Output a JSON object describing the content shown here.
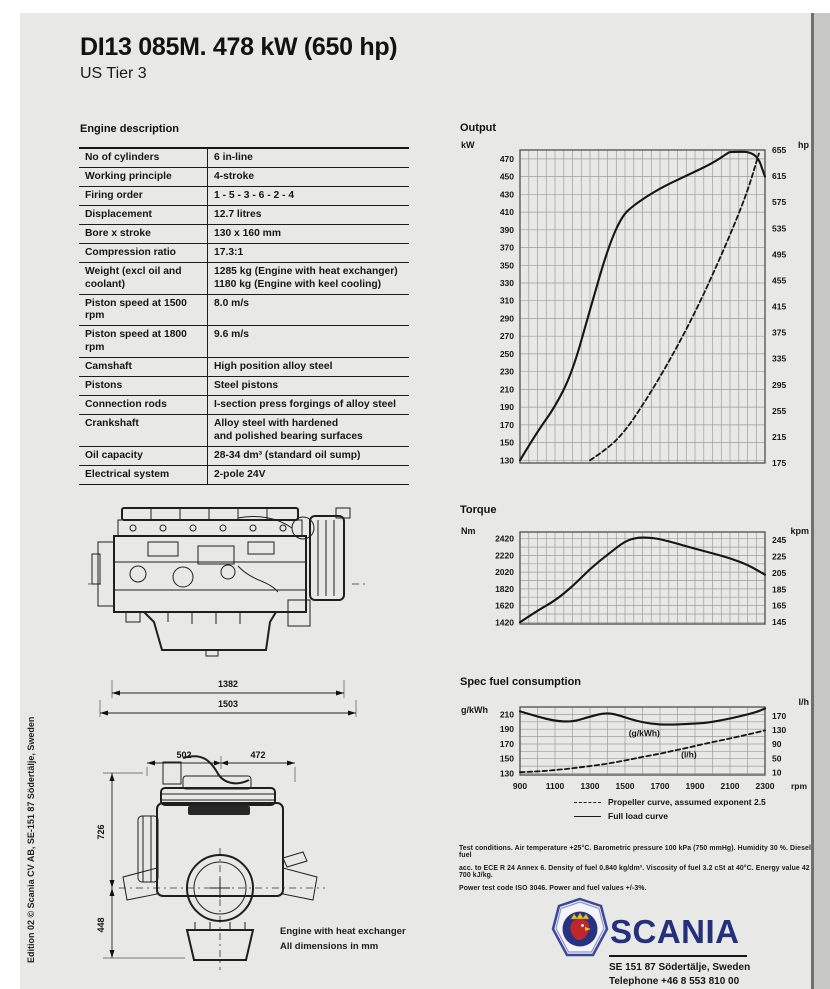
{
  "page": {
    "title": "DI13 085M. 478 kW (650 hp)",
    "subtitle": "US Tier 3",
    "edition_sidebar": "Edition 02 © Scania CV AB, SE-151 87  Södertälje, Sweden"
  },
  "engine_table": {
    "heading": "Engine description",
    "rows": [
      {
        "label": "No of cylinders",
        "value": "6 in-line"
      },
      {
        "label": "Working principle",
        "value": "4-stroke"
      },
      {
        "label": "Firing order",
        "value": "1 - 5 - 3 - 6 - 2 - 4"
      },
      {
        "label": "Displacement",
        "value": "12.7 litres"
      },
      {
        "label": "Bore x stroke",
        "value": "130 x 160 mm"
      },
      {
        "label": "Compression ratio",
        "value": "17.3:1"
      },
      {
        "label": "Weight (excl oil and coolant)",
        "value": "1285 kg (Engine with heat exchanger)\n1180 kg (Engine with keel cooling)"
      },
      {
        "label": "Piston speed at 1500 rpm",
        "value": "8.0 m/s"
      },
      {
        "label": "Piston speed at 1800 rpm",
        "value": "9.6 m/s"
      },
      {
        "label": "Camshaft",
        "value": "High position alloy steel"
      },
      {
        "label": "Pistons",
        "value": "Steel pistons"
      },
      {
        "label": "Connection rods",
        "value": "I-section press forgings of alloy steel"
      },
      {
        "label": "Crankshaft",
        "value": "Alloy steel with hardened\nand polished bearing surfaces"
      },
      {
        "label": "Oil capacity",
        "value": "28-34 dm³  (standard oil sump)"
      },
      {
        "label": "Electrical system",
        "value": "2-pole 24V"
      }
    ]
  },
  "drawings": {
    "side": {
      "dim_length_inner": "1382",
      "dim_length_outer": "1503"
    },
    "front": {
      "dim_top_left": "502",
      "dim_top_right": "472",
      "dim_height_upper": "726",
      "dim_height_lower": "448"
    },
    "caption_line1": "Engine with heat exchanger",
    "caption_line2": "All dimensions in mm"
  },
  "chart_data": [
    {
      "id": "output",
      "type": "line",
      "title": "Output",
      "left_unit": "kW",
      "right_unit": "hp",
      "xlim": [
        900,
        2300
      ],
      "x_grid_step": 50,
      "show_x_labels": false,
      "ylim": [
        127,
        480
      ],
      "y_grid_step": 20,
      "left_ticks": [
        470,
        450,
        430,
        410,
        390,
        370,
        350,
        330,
        310,
        290,
        270,
        250,
        230,
        210,
        190,
        170,
        150,
        130
      ],
      "ylim_right": [
        175,
        655
      ],
      "right_ticks": [
        655,
        615,
        575,
        535,
        495,
        455,
        415,
        375,
        335,
        295,
        255,
        215,
        175
      ],
      "series": [
        {
          "name": "Full load curve",
          "style": "solid",
          "axis": "left",
          "points": [
            [
              900,
              130
            ],
            [
              1000,
              163
            ],
            [
              1100,
              190
            ],
            [
              1200,
              230
            ],
            [
              1300,
              300
            ],
            [
              1400,
              368
            ],
            [
              1480,
              405
            ],
            [
              1550,
              418
            ],
            [
              1700,
              437
            ],
            [
              1850,
              451
            ],
            [
              2000,
              465
            ],
            [
              2090,
              477
            ],
            [
              2100,
              478
            ],
            [
              2250,
              478
            ],
            [
              2300,
              450
            ]
          ]
        },
        {
          "name": "Propeller curve, assumed exponent 2.5",
          "style": "dashed",
          "axis": "left",
          "points": [
            [
              1300,
              130
            ],
            [
              1400,
              143
            ],
            [
              1500,
              163
            ],
            [
              1600,
              192
            ],
            [
              1700,
              224
            ],
            [
              1800,
              259
            ],
            [
              1900,
              297
            ],
            [
              2000,
              339
            ],
            [
              2100,
              384
            ],
            [
              2200,
              433
            ],
            [
              2265,
              476
            ]
          ]
        }
      ]
    },
    {
      "id": "torque",
      "type": "line",
      "title": "Torque",
      "left_unit": "Nm",
      "right_unit": "kpm",
      "xlim": [
        900,
        2300
      ],
      "x_grid_step": 50,
      "show_x_labels": false,
      "ylim": [
        1400,
        2500
      ],
      "y_grid_step": 100,
      "left_ticks": [
        2420,
        2220,
        2020,
        1820,
        1620,
        1420
      ],
      "ylim_right": [
        142.7,
        254.8
      ],
      "right_ticks": [
        245,
        225,
        205,
        185,
        165,
        145
      ],
      "series": [
        {
          "name": "Full load curve",
          "style": "solid",
          "axis": "left",
          "points": [
            [
              900,
              1420
            ],
            [
              1000,
              1560
            ],
            [
              1100,
              1680
            ],
            [
              1200,
              1850
            ],
            [
              1300,
              2060
            ],
            [
              1400,
              2230
            ],
            [
              1500,
              2390
            ],
            [
              1570,
              2435
            ],
            [
              1650,
              2430
            ],
            [
              1700,
              2415
            ],
            [
              1800,
              2360
            ],
            [
              1900,
              2300
            ],
            [
              2000,
              2245
            ],
            [
              2100,
              2185
            ],
            [
              2200,
              2110
            ],
            [
              2300,
              1990
            ]
          ]
        }
      ]
    },
    {
      "id": "fuel",
      "type": "line",
      "title": "Spec fuel consumption",
      "left_unit": "g/kWh",
      "right_unit": "l/h",
      "x_axis_label": "rpm",
      "xlim": [
        900,
        2300
      ],
      "x_grid_step": 100,
      "show_x_labels": true,
      "x_ticks": [
        900,
        1100,
        1300,
        1500,
        1700,
        1900,
        2100,
        2300
      ],
      "ylim": [
        128,
        220
      ],
      "y_grid_step": 10,
      "left_ticks": [
        210,
        190,
        170,
        150,
        130
      ],
      "ylim_right": [
        3,
        195
      ],
      "right_ticks": [
        170,
        130,
        90,
        50,
        10
      ],
      "annotations": [
        {
          "text": "(g/kWh)",
          "x": 1610,
          "y": 181
        },
        {
          "text": "(l/h)",
          "x": 1865,
          "y": 152
        }
      ],
      "series": [
        {
          "name": "Full load curve",
          "style": "solid",
          "axis": "left",
          "points": [
            [
              900,
              214
            ],
            [
              1000,
              207
            ],
            [
              1100,
              201
            ],
            [
              1200,
              200
            ],
            [
              1300,
              207
            ],
            [
              1380,
              212
            ],
            [
              1450,
              210
            ],
            [
              1550,
              202
            ],
            [
              1650,
              197
            ],
            [
              1750,
              196
            ],
            [
              1850,
              197
            ],
            [
              1950,
              198
            ],
            [
              2050,
              202
            ],
            [
              2150,
              207
            ],
            [
              2250,
              213
            ],
            [
              2300,
              218
            ]
          ]
        },
        {
          "name": "Propeller curve, assumed exponent 2.5",
          "style": "dashed",
          "axis": "right",
          "points": [
            [
              900,
              11
            ],
            [
              1000,
              13
            ],
            [
              1100,
              17
            ],
            [
              1200,
              22
            ],
            [
              1300,
              28
            ],
            [
              1400,
              35
            ],
            [
              1500,
              44
            ],
            [
              1600,
              54
            ],
            [
              1700,
              63
            ],
            [
              1800,
              74
            ],
            [
              1900,
              85
            ],
            [
              2000,
              96
            ],
            [
              2100,
              106
            ],
            [
              2200,
              117
            ],
            [
              2300,
              129
            ]
          ]
        }
      ]
    }
  ],
  "legend": {
    "items": [
      {
        "style": "dashed",
        "label": "Propeller curve, assumed exponent 2.5"
      },
      {
        "style": "solid",
        "label": "Full load curve"
      }
    ]
  },
  "test_conditions": [
    "Test conditions. Air temperature +25°C. Barometric pressure 100 kPa (750 mmHg). Humidity 30 %. Diesel fuel",
    "acc. to ECE R 24 Annex 6. Density of fuel 0.840 kg/dm³. Viscosity of fuel 3.2 cSt at 40°C. Energy value 42 700 kJ/kg.",
    "Power test code ISO 3046. Power and fuel values +/-3%."
  ],
  "footer": {
    "brand": "SCANIA",
    "address": "SE 151 87  Södertälje, Sweden",
    "phone": "Telephone +46 8 553 810 00"
  }
}
